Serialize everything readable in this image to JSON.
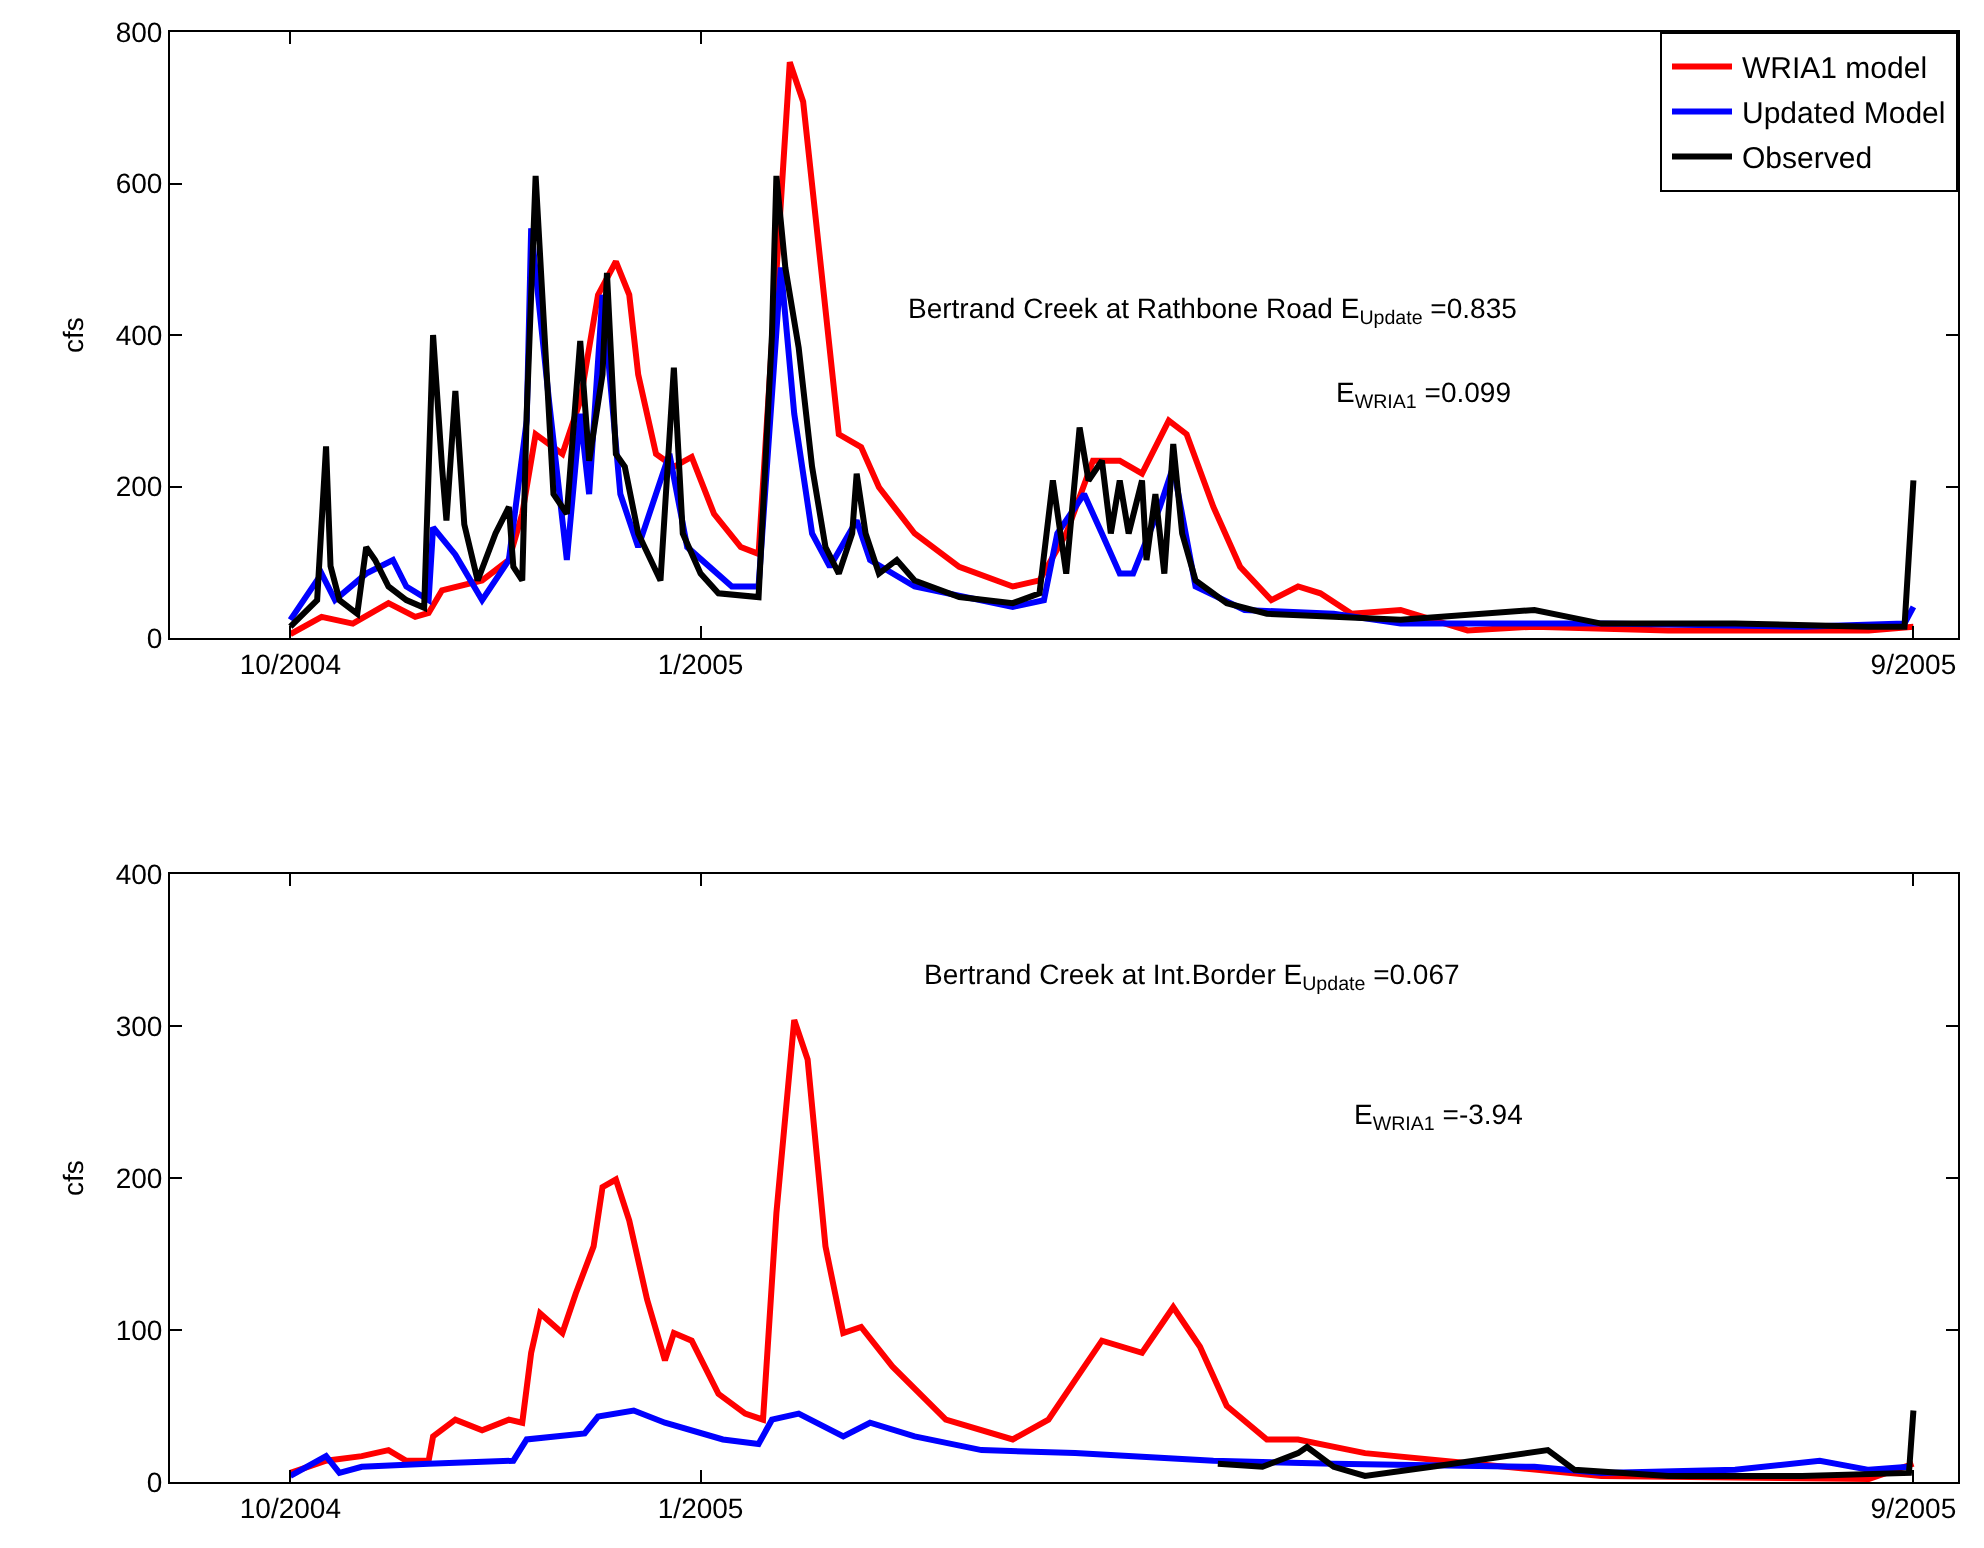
{
  "chart_data": [
    {
      "type": "line",
      "ylabel": "cfs",
      "xlim": [
        "2004-09-04",
        "2005-10-10"
      ],
      "ylim": [
        0,
        800
      ],
      "yticks": [
        0,
        200,
        400,
        600,
        800
      ],
      "xticks": [
        {
          "value": "2004-10-01",
          "label": "10/2004"
        },
        {
          "value": "2005-01-01",
          "label": "1/2005"
        },
        {
          "value": "2005-09-30",
          "label": "9/2005"
        }
      ],
      "grid": false,
      "legend": "top right",
      "line_style": "solid",
      "marker": "none",
      "annotations": [
        "Bertrand Creek at Rathbone Road E$_{Update}$ =0.835",
        "E$_{WRIA1}$ =0.099"
      ],
      "series": [
        {
          "name": "WRIA1 model",
          "color": "#ff0000",
          "x": [
            "2004-10-01",
            "2004-10-08",
            "2004-10-15",
            "2004-10-23",
            "2004-10-29",
            "2004-11-01",
            "2004-11-04",
            "2004-11-13",
            "2004-11-19",
            "2004-11-22",
            "2004-11-25",
            "2004-12-01",
            "2004-12-05",
            "2004-12-09",
            "2004-12-13",
            "2004-12-16",
            "2004-12-18",
            "2004-12-22",
            "2004-12-26",
            "2004-12-30",
            "2005-01-04",
            "2005-01-10",
            "2005-01-14",
            "2005-01-21",
            "2005-01-24",
            "2005-01-28",
            "2005-02-01",
            "2005-02-06",
            "2005-02-10",
            "2005-02-18",
            "2005-02-28",
            "2005-03-12",
            "2005-03-18",
            "2005-03-24",
            "2005-03-30",
            "2005-04-05",
            "2005-04-10",
            "2005-04-16",
            "2005-04-20",
            "2005-04-26",
            "2005-05-02",
            "2005-05-09",
            "2005-05-15",
            "2005-05-20",
            "2005-05-27",
            "2005-06-07",
            "2005-06-22",
            "2005-07-07",
            "2005-08-06",
            "2005-09-20",
            "2005-09-30"
          ],
          "values": [
            5,
            28,
            19,
            46,
            28,
            33,
            63,
            76,
            103,
            164,
            269,
            243,
            313,
            453,
            497,
            453,
            348,
            243,
            226,
            239,
            164,
            120,
            111,
            760,
            708,
            489,
            269,
            252,
            199,
            138,
            94,
            68,
            76,
            138,
            234,
            234,
            217,
            287,
            269,
            173,
            94,
            50,
            68,
            59,
            32,
            37,
            10,
            15,
            10,
            10,
            15
          ]
        },
        {
          "name": "Updated Model",
          "color": "#0000ff",
          "x": [
            "2004-10-01",
            "2004-10-08",
            "2004-10-11",
            "2004-10-18",
            "2004-10-24",
            "2004-10-27",
            "2004-11-01",
            "2004-11-02",
            "2004-11-07",
            "2004-11-13",
            "2004-11-19",
            "2004-11-23",
            "2004-11-24",
            "2004-11-28",
            "2004-12-02",
            "2004-12-05",
            "2004-12-07",
            "2004-12-10",
            "2004-12-14",
            "2004-12-18",
            "2004-12-25",
            "2004-12-29",
            "2005-01-08",
            "2005-01-14",
            "2005-01-19",
            "2005-01-22",
            "2005-01-26",
            "2005-01-30",
            "2005-02-05",
            "2005-02-08",
            "2005-02-18",
            "2005-03-12",
            "2005-03-19",
            "2005-03-22",
            "2005-03-28",
            "2005-04-01",
            "2005-04-05",
            "2005-04-08",
            "2005-04-14",
            "2005-04-17",
            "2005-04-22",
            "2005-05-03",
            "2005-05-23",
            "2005-06-07",
            "2005-07-22",
            "2005-09-05",
            "2005-09-28",
            "2005-09-30"
          ],
          "values": [
            24,
            85,
            50,
            85,
            103,
            68,
            50,
            146,
            110,
            50,
            103,
            287,
            541,
            313,
            103,
            296,
            190,
            453,
            190,
            120,
            243,
            120,
            68,
            68,
            489,
            296,
            138,
            94,
            155,
            103,
            68,
            41,
            50,
            138,
            190,
            138,
            85,
            85,
            173,
            226,
            68,
            37,
            32,
            19,
            19,
            15,
            19,
            41
          ]
        },
        {
          "name": "Observed",
          "color": "#000000",
          "x": [
            "2004-10-01",
            "2004-10-07",
            "2004-10-09",
            "2004-10-10",
            "2004-10-12",
            "2004-10-16",
            "2004-10-18",
            "2004-10-20",
            "2004-10-23",
            "2004-10-27",
            "2004-10-31",
            "2004-11-02",
            "2004-11-04",
            "2004-11-05",
            "2004-11-07",
            "2004-11-09",
            "2004-11-12",
            "2004-11-16",
            "2004-11-19",
            "2004-11-20",
            "2004-11-22",
            "2004-11-23",
            "2004-11-25",
            "2004-11-27",
            "2004-11-29",
            "2004-12-02",
            "2004-12-05",
            "2004-12-07",
            "2004-12-10",
            "2004-12-11",
            "2004-12-13",
            "2004-12-15",
            "2004-12-18",
            "2004-12-23",
            "2004-12-26",
            "2004-12-28",
            "2005-01-01",
            "2005-01-05",
            "2005-01-14",
            "2005-01-17",
            "2005-01-18",
            "2005-01-20",
            "2005-01-23",
            "2005-01-26",
            "2005-01-29",
            "2005-02-01",
            "2005-02-04",
            "2005-02-05",
            "2005-02-07",
            "2005-02-10",
            "2005-02-14",
            "2005-02-18",
            "2005-02-28",
            "2005-03-12",
            "2005-03-18",
            "2005-03-21",
            "2005-03-24",
            "2005-03-27",
            "2005-03-29",
            "2005-04-01",
            "2005-04-03",
            "2005-04-05",
            "2005-04-07",
            "2005-04-10",
            "2005-04-11",
            "2005-04-13",
            "2005-04-15",
            "2005-04-17",
            "2005-04-19",
            "2005-04-22",
            "2005-04-29",
            "2005-05-08",
            "2005-05-23",
            "2005-06-07",
            "2005-07-07",
            "2005-07-22",
            "2005-08-21",
            "2005-09-20",
            "2005-09-28",
            "2005-09-30"
          ],
          "values": [
            15,
            50,
            253,
            95,
            50,
            32,
            120,
            103,
            68,
            50,
            40,
            400,
            226,
            155,
            326,
            150,
            76,
            138,
            173,
            94,
            76,
            296,
            610,
            400,
            190,
            164,
            392,
            234,
            348,
            482,
            243,
            226,
            138,
            76,
            357,
            138,
            85,
            59,
            54,
            400,
            610,
            489,
            383,
            226,
            120,
            85,
            138,
            217,
            138,
            85,
            103,
            76,
            54,
            46,
            59,
            208,
            85,
            278,
            208,
            234,
            138,
            208,
            138,
            208,
            103,
            190,
            85,
            256,
            138,
            76,
            46,
            32,
            28,
            24,
            37,
            19,
            19,
            15,
            15,
            208
          ]
        }
      ]
    },
    {
      "type": "line",
      "ylabel": "cfs",
      "xlim": [
        "2004-09-04",
        "2005-10-10"
      ],
      "ylim": [
        0,
        400
      ],
      "yticks": [
        0,
        100,
        200,
        300,
        400
      ],
      "xticks": [
        {
          "value": "2004-10-01",
          "label": "10/2004"
        },
        {
          "value": "2005-01-01",
          "label": "1/2005"
        },
        {
          "value": "2005-09-30",
          "label": "9/2005"
        }
      ],
      "grid": false,
      "line_style": "solid",
      "marker": "none",
      "annotations": [
        "Bertrand Creek at Int.Border E$_{Update}$ =0.067",
        "E$_{WRIA1}$ =-3.94"
      ],
      "series": [
        {
          "color": "#ff0000",
          "x": [
            "2004-10-01",
            "2004-10-09",
            "2004-10-17",
            "2004-10-23",
            "2004-10-27",
            "2004-11-01",
            "2004-11-02",
            "2004-11-07",
            "2004-11-13",
            "2004-11-19",
            "2004-11-22",
            "2004-11-24",
            "2004-11-26",
            "2004-12-01",
            "2004-12-04",
            "2004-12-08",
            "2004-12-10",
            "2004-12-13",
            "2004-12-16",
            "2004-12-20",
            "2004-12-24",
            "2004-12-26",
            "2004-12-30",
            "2005-01-05",
            "2005-01-11",
            "2005-01-15",
            "2005-01-18",
            "2005-01-22",
            "2005-01-25",
            "2005-01-29",
            "2005-02-02",
            "2005-02-06",
            "2005-02-13",
            "2005-02-25",
            "2005-03-12",
            "2005-03-20",
            "2005-03-26",
            "2005-04-01",
            "2005-04-10",
            "2005-04-17",
            "2005-04-23",
            "2005-04-29",
            "2005-05-08",
            "2005-05-15",
            "2005-05-30",
            "2005-07-22",
            "2005-09-20",
            "2005-09-30"
          ],
          "values": [
            6,
            14,
            17,
            21,
            14,
            14,
            30,
            41,
            34,
            41,
            39,
            85,
            111,
            98,
            124,
            155,
            194,
            199,
            172,
            120,
            80,
            98,
            93,
            58,
            45,
            41,
            177,
            304,
            278,
            155,
            98,
            102,
            76,
            41,
            28,
            41,
            67,
            93,
            85,
            115,
            89,
            50,
            28,
            28,
            19,
            4,
            2,
            12
          ]
        },
        {
          "color": "#0000ff",
          "x": [
            "2004-10-01",
            "2004-10-09",
            "2004-10-12",
            "2004-10-17",
            "2004-11-01",
            "2004-11-20",
            "2004-11-23",
            "2004-12-06",
            "2004-12-09",
            "2004-12-17",
            "2004-12-24",
            "2005-01-06",
            "2005-01-14",
            "2005-01-17",
            "2005-01-23",
            "2005-02-02",
            "2005-02-08",
            "2005-02-18",
            "2005-03-05",
            "2005-03-26",
            "2005-04-26",
            "2005-05-23",
            "2005-07-07",
            "2005-07-22",
            "2005-08-21",
            "2005-09-09",
            "2005-09-20",
            "2005-09-29"
          ],
          "values": [
            4,
            17,
            6,
            10,
            12,
            14,
            28,
            32,
            43,
            47,
            39,
            28,
            25,
            41,
            45,
            30,
            39,
            30,
            21,
            19,
            14,
            12,
            10,
            6,
            8,
            14,
            8,
            10
          ]
        },
        {
          "color": "#000000",
          "x": [
            "2005-04-27",
            "2005-05-07",
            "2005-05-15",
            "2005-05-17",
            "2005-05-23",
            "2005-05-30",
            "2005-06-14",
            "2005-07-10",
            "2005-07-16",
            "2005-08-06",
            "2005-09-05",
            "2005-09-29",
            "2005-09-30"
          ],
          "values": [
            12,
            10,
            19,
            23,
            10,
            4,
            10,
            21,
            8,
            4,
            4,
            6,
            47
          ]
        }
      ]
    }
  ]
}
